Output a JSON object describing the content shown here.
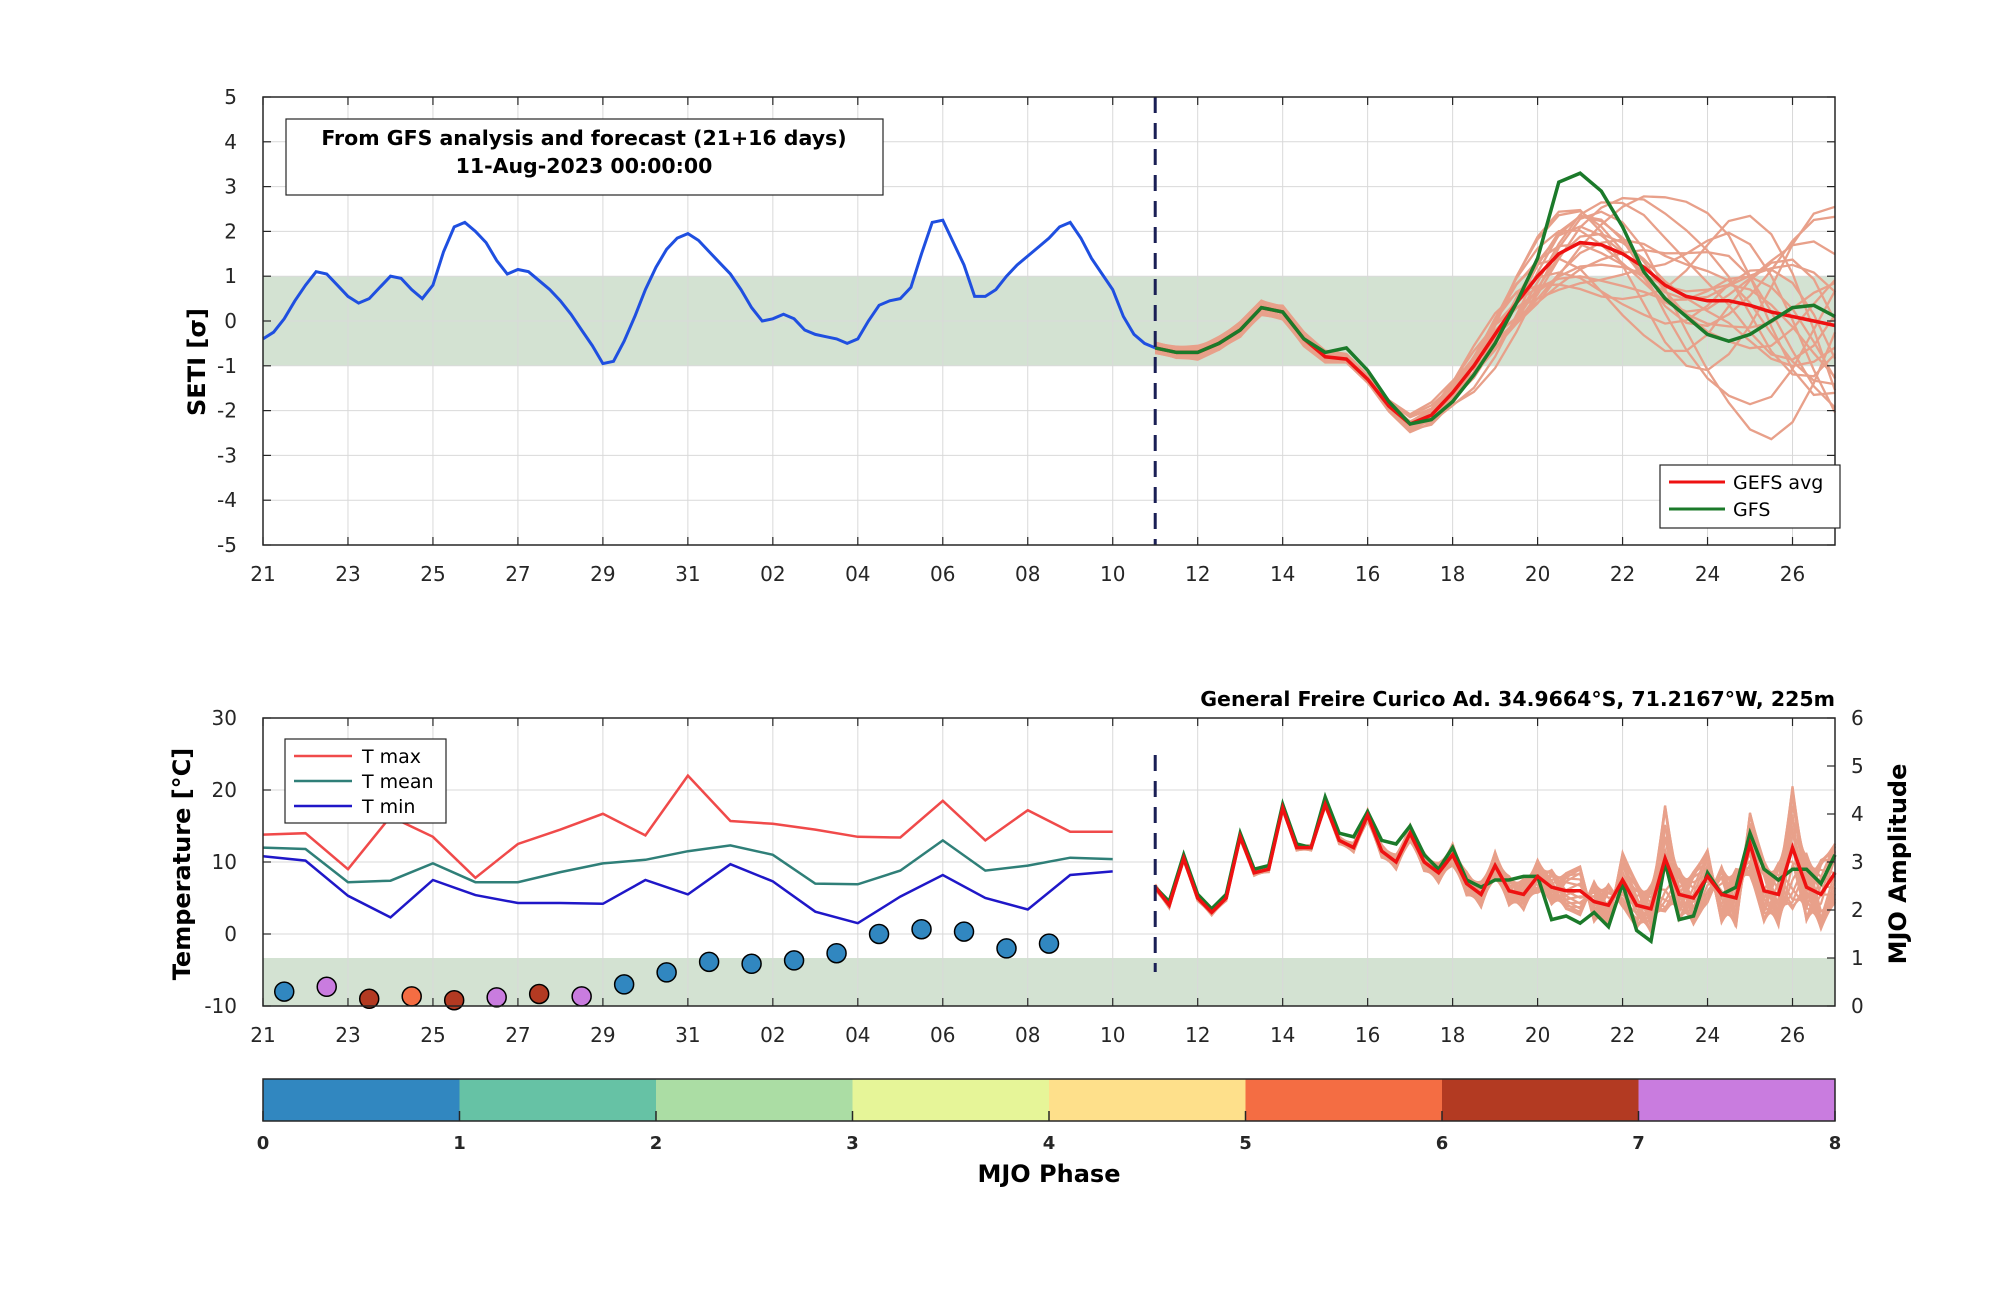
{
  "colors": {
    "band": "#d3e2d2",
    "analysis": "#1f4fe0",
    "gefs_avg": "#ee1111",
    "gfs": "#1b7a2a",
    "ensemble": "#e8a08a",
    "divider": "#1a1f55",
    "tmax": "#f04a4a",
    "tmean": "#2f7f78",
    "tmin": "#1f17c8",
    "mjo_phase": [
      "#3187c0",
      "#66c2a5",
      "#abdda4",
      "#e6f598",
      "#fee08b",
      "#f46d43",
      "#b33a22",
      "#c97cdf"
    ]
  },
  "top": {
    "info_line1": "From GFS analysis and forecast (21+16 days)",
    "info_line2": "11-Aug-2023 00:00:00",
    "y_label": "SETI [σ]",
    "legend": {
      "gefs": "GEFS avg",
      "gfs": "GFS"
    }
  },
  "bottom": {
    "station": "General Freire Curico Ad. 34.9664°S, 71.2167°W, 225m",
    "y_label_left": "Temperature [°C]",
    "y_label_right": "MJO Amplitude",
    "legend": {
      "tmax": "T max",
      "tmean": "T mean",
      "tmin": "T min"
    }
  },
  "colorbar": {
    "label": "MJO Phase",
    "ticks": [
      "0",
      "1",
      "2",
      "3",
      "4",
      "5",
      "6",
      "7",
      "8"
    ]
  },
  "chart_data": [
    {
      "type": "line",
      "title": "From GFS analysis and forecast (21+16 days) 11-Aug-2023 00:00:00",
      "ylabel": "SETI [σ]",
      "x_unit": "day index (0 = 21 Jul 2023)",
      "xlim": [
        0,
        37
      ],
      "ylim": [
        -5,
        5
      ],
      "y_ticks": [
        "-5",
        "-4",
        "-3",
        "-2",
        "-1",
        "0",
        "1",
        "2",
        "3",
        "4",
        "5"
      ],
      "x_tick_labels": [
        "21",
        "23",
        "25",
        "27",
        "29",
        "31",
        "02",
        "04",
        "06",
        "08",
        "10",
        "12",
        "14",
        "16",
        "18",
        "20",
        "22",
        "24",
        "26"
      ],
      "band": [
        -1,
        1
      ],
      "forecast_start": 21,
      "series": [
        {
          "name": "analysis",
          "x": [
            0,
            0.25,
            0.5,
            0.75,
            1,
            1.25,
            1.5,
            1.75,
            2,
            2.25,
            2.5,
            2.75,
            3,
            3.25,
            3.5,
            3.75,
            4,
            4.25,
            4.5,
            4.75,
            5,
            5.25,
            5.5,
            5.75,
            6,
            6.25,
            6.5,
            6.75,
            7,
            7.25,
            7.5,
            7.75,
            8,
            8.25,
            8.5,
            8.75,
            9,
            9.25,
            9.5,
            9.75,
            10,
            10.25,
            10.5,
            10.75,
            11,
            11.25,
            11.5,
            11.75,
            12,
            12.25,
            12.5,
            12.75,
            13,
            13.25,
            13.5,
            13.75,
            14,
            14.25,
            14.5,
            14.75,
            15,
            15.25,
            15.5,
            15.75,
            16,
            16.25,
            16.5,
            16.75,
            17,
            17.25,
            17.5,
            17.75,
            18,
            18.25,
            18.5,
            18.75,
            19,
            19.25,
            19.5,
            19.75,
            20,
            20.25,
            20.5,
            20.75,
            21
          ],
          "values": [
            -0.4,
            -0.25,
            0.05,
            0.45,
            0.8,
            1.1,
            1.05,
            0.8,
            0.55,
            0.4,
            0.5,
            0.75,
            1.0,
            0.95,
            0.7,
            0.5,
            0.8,
            1.55,
            2.1,
            2.2,
            2.0,
            1.75,
            1.35,
            1.05,
            1.15,
            1.1,
            0.9,
            0.7,
            0.45,
            0.15,
            -0.2,
            -0.55,
            -0.95,
            -0.9,
            -0.45,
            0.1,
            0.7,
            1.2,
            1.6,
            1.85,
            1.95,
            1.8,
            1.55,
            1.3,
            1.05,
            0.7,
            0.3,
            0.0,
            0.05,
            0.15,
            0.05,
            -0.2,
            -0.3,
            -0.35,
            -0.4,
            -0.5,
            -0.4,
            0.0,
            0.35,
            0.45,
            0.5,
            0.75,
            1.5,
            2.2,
            2.25,
            1.75,
            1.25,
            0.55,
            0.55,
            0.7,
            1.0,
            1.25,
            1.45,
            1.65,
            1.85,
            2.1,
            2.2,
            1.85,
            1.4,
            1.05,
            0.7,
            0.1,
            -0.3,
            -0.5,
            -0.6
          ]
        },
        {
          "name": "GEFS avg",
          "x": [
            21,
            21.5,
            22,
            22.5,
            23,
            23.5,
            24,
            24.5,
            25,
            25.5,
            26,
            26.5,
            27,
            27.5,
            28,
            28.5,
            29,
            29.5,
            30,
            30.5,
            31,
            31.5,
            32,
            32.5,
            33,
            33.5,
            34,
            34.5,
            35,
            35.5,
            36,
            36.5,
            37
          ],
          "values": [
            -0.6,
            -0.7,
            -0.7,
            -0.5,
            -0.2,
            0.3,
            0.2,
            -0.4,
            -0.8,
            -0.85,
            -1.3,
            -1.9,
            -2.3,
            -2.1,
            -1.6,
            -1.0,
            -0.3,
            0.4,
            1.0,
            1.5,
            1.75,
            1.7,
            1.5,
            1.2,
            0.8,
            0.55,
            0.45,
            0.45,
            0.35,
            0.2,
            0.1,
            0.0,
            -0.1
          ]
        },
        {
          "name": "GFS",
          "x": [
            21,
            21.5,
            22,
            22.5,
            23,
            23.5,
            24,
            24.5,
            25,
            25.5,
            26,
            26.5,
            27,
            27.5,
            28,
            28.5,
            29,
            29.5,
            30,
            30.5,
            31,
            31.5,
            32,
            32.5,
            33,
            33.5,
            34,
            34.5,
            35,
            35.5,
            36,
            36.5,
            37
          ],
          "values": [
            -0.6,
            -0.7,
            -0.7,
            -0.5,
            -0.2,
            0.3,
            0.2,
            -0.4,
            -0.7,
            -0.6,
            -1.1,
            -1.8,
            -2.3,
            -2.2,
            -1.8,
            -1.2,
            -0.5,
            0.4,
            1.4,
            3.1,
            3.3,
            2.9,
            2.1,
            1.1,
            0.5,
            0.1,
            -0.3,
            -0.45,
            -0.3,
            0.0,
            0.3,
            0.35,
            0.1
          ]
        }
      ]
    },
    {
      "type": "line",
      "title": "General Freire Curico Ad. 34.9664°S, 71.2167°W, 225m",
      "ylabel": "Temperature [°C]",
      "ylabel_right": "MJO Amplitude",
      "x_unit": "day index (0 = 21 Jul 2023)",
      "xlim": [
        0,
        37
      ],
      "ylim": [
        -10,
        30
      ],
      "ylim_right": [
        0,
        6
      ],
      "y_ticks": [
        "-10",
        "0",
        "10",
        "20",
        "30"
      ],
      "y_ticks_right": [
        "0",
        "1",
        "2",
        "3",
        "4",
        "5",
        "6"
      ],
      "x_tick_labels": [
        "21",
        "23",
        "25",
        "27",
        "29",
        "31",
        "02",
        "04",
        "06",
        "08",
        "10",
        "12",
        "14",
        "16",
        "18",
        "20",
        "22",
        "24",
        "26"
      ],
      "band_right": [
        0,
        1
      ],
      "forecast_start": 21,
      "series": [
        {
          "name": "T max",
          "x": [
            0,
            1,
            2,
            3,
            4,
            5,
            6,
            7,
            8,
            9,
            10,
            11,
            12,
            13,
            14,
            15,
            16,
            17,
            18,
            19,
            20
          ],
          "values": [
            13.8,
            14.0,
            9.0,
            16.3,
            13.5,
            7.8,
            12.5,
            14.5,
            16.7,
            13.7,
            22.0,
            15.7,
            15.3,
            14.5,
            13.5,
            13.4,
            18.5,
            13.0,
            17.2,
            14.2,
            14.2
          ]
        },
        {
          "name": "T mean",
          "x": [
            0,
            1,
            2,
            3,
            4,
            5,
            6,
            7,
            8,
            9,
            10,
            11,
            12,
            13,
            14,
            15,
            16,
            17,
            18,
            19,
            20
          ],
          "values": [
            12.0,
            11.8,
            7.2,
            7.4,
            9.8,
            7.2,
            7.2,
            8.6,
            9.8,
            10.3,
            11.5,
            12.3,
            11.0,
            7.0,
            6.9,
            8.8,
            13.0,
            8.8,
            9.5,
            10.6,
            10.4
          ]
        },
        {
          "name": "T min",
          "x": [
            0,
            1,
            2,
            3,
            4,
            5,
            6,
            7,
            8,
            9,
            10,
            11,
            12,
            13,
            14,
            15,
            16,
            17,
            18,
            19,
            20
          ],
          "values": [
            10.8,
            10.2,
            5.3,
            2.3,
            7.5,
            5.4,
            4.3,
            4.3,
            4.2,
            7.5,
            5.5,
            9.7,
            7.3,
            3.1,
            1.5,
            5.2,
            8.2,
            5.0,
            3.4,
            8.2,
            8.7
          ]
        },
        {
          "name": "GEFS avg",
          "x": [
            21,
            21.33,
            21.67,
            22,
            22.33,
            22.67,
            23,
            23.33,
            23.67,
            24,
            24.33,
            24.67,
            25,
            25.33,
            25.67,
            26,
            26.33,
            26.67,
            27,
            27.33,
            27.67,
            28,
            28.33,
            28.67,
            29,
            29.33,
            29.67,
            30,
            30.33,
            30.67,
            31,
            31.33,
            31.67,
            32,
            32.33,
            32.67,
            33,
            33.33,
            33.67,
            34,
            34.33,
            34.67,
            35,
            35.33,
            35.67,
            36,
            36.33,
            36.67,
            37
          ],
          "values": [
            6.5,
            4.0,
            10.5,
            5.0,
            3.0,
            5.0,
            13.5,
            8.5,
            9.0,
            17.5,
            12.0,
            12.0,
            18.0,
            13.0,
            12.0,
            16.5,
            11.5,
            10.0,
            14.0,
            10.0,
            8.5,
            11.0,
            7.0,
            5.5,
            9.5,
            6.0,
            5.5,
            8.0,
            6.5,
            6.0,
            6.0,
            4.5,
            4.0,
            7.5,
            4.0,
            3.5,
            10.5,
            5.5,
            5.0,
            8.0,
            5.5,
            5.0,
            12.5,
            6.0,
            5.5,
            12.0,
            6.5,
            5.5,
            8.5
          ]
        },
        {
          "name": "GFS",
          "x": [
            21,
            21.33,
            21.67,
            22,
            22.33,
            22.67,
            23,
            23.33,
            23.67,
            24,
            24.33,
            24.67,
            25,
            25.33,
            25.67,
            26,
            26.33,
            26.67,
            27,
            27.33,
            27.67,
            28,
            28.33,
            28.67,
            29,
            29.33,
            29.67,
            30,
            30.33,
            30.67,
            31,
            31.33,
            31.67,
            32,
            32.33,
            32.67,
            33,
            33.33,
            33.67,
            34,
            34.33,
            34.67,
            35,
            35.33,
            35.67,
            36,
            36.33,
            36.67,
            37
          ],
          "values": [
            6.5,
            4.5,
            11.0,
            5.5,
            3.5,
            5.5,
            14.0,
            9.0,
            9.5,
            18.0,
            12.5,
            12.0,
            19.0,
            14.0,
            13.5,
            17.0,
            13.0,
            12.5,
            15.0,
            11.0,
            9.0,
            12.0,
            7.5,
            6.5,
            7.5,
            7.5,
            8.0,
            8.0,
            2.0,
            2.5,
            1.5,
            3.0,
            1.0,
            7.0,
            0.5,
            -1.0,
            10.0,
            2.0,
            2.5,
            8.5,
            5.5,
            6.5,
            14.0,
            9.0,
            7.5,
            9.0,
            9.0,
            7.0,
            11.0
          ]
        },
        {
          "name": "MJO Amplitude (dots, color = phase)",
          "x": [
            0.5,
            1.5,
            2.5,
            3.5,
            4.5,
            5.5,
            6.5,
            7.5,
            8.5,
            9.5,
            10.5,
            11.5,
            12.5,
            13.5,
            14.5,
            15.5,
            16.5,
            17.5,
            18.5
          ],
          "amplitude": [
            0.3,
            0.4,
            0.15,
            0.2,
            0.12,
            0.18,
            0.25,
            0.2,
            0.45,
            0.7,
            0.92,
            0.88,
            0.95,
            1.1,
            1.5,
            1.6,
            1.55,
            1.2,
            1.3
          ],
          "phase": [
            1,
            8,
            7,
            6,
            7,
            8,
            7,
            8,
            1,
            1,
            1,
            1,
            1,
            1,
            1,
            1,
            1,
            1,
            1
          ]
        }
      ]
    }
  ]
}
